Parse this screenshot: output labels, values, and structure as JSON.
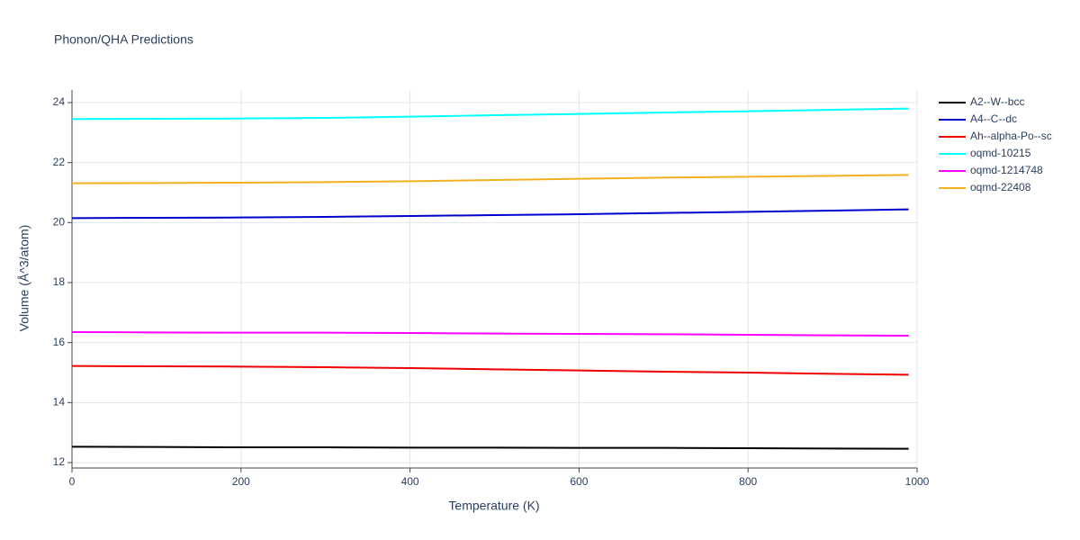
{
  "chart_data": {
    "type": "line",
    "title": "Phonon/QHA Predictions",
    "x_label": "Temperature (K)",
    "y_label": "Volume (Å^3/atom)",
    "x": [
      0,
      100,
      200,
      300,
      400,
      500,
      600,
      700,
      800,
      900,
      990
    ],
    "series": [
      {
        "name": "A2--W--bcc",
        "color": "#000000",
        "values": [
          12.53,
          12.52,
          12.51,
          12.51,
          12.5,
          12.5,
          12.49,
          12.49,
          12.48,
          12.47,
          12.46
        ]
      },
      {
        "name": "A4--C--dc",
        "color": "#0000cd",
        "values": [
          20.15,
          20.16,
          20.17,
          20.19,
          20.22,
          20.25,
          20.28,
          20.32,
          20.36,
          20.4,
          20.44
        ]
      },
      {
        "name": "Ah--alpha-Po--sc",
        "color": "#ee0000",
        "values": [
          15.22,
          15.21,
          15.2,
          15.18,
          15.15,
          15.11,
          15.07,
          15.03,
          15.0,
          14.96,
          14.93
        ]
      },
      {
        "name": "oqmd-10215",
        "color": "#00ffff",
        "values": [
          23.45,
          23.46,
          23.47,
          23.49,
          23.53,
          23.58,
          23.62,
          23.67,
          23.71,
          23.76,
          23.8
        ]
      },
      {
        "name": "oqmd-1214748",
        "color": "#ff00ff",
        "values": [
          16.35,
          16.34,
          16.33,
          16.33,
          16.32,
          16.3,
          16.29,
          16.28,
          16.26,
          16.24,
          16.23
        ]
      },
      {
        "name": "oqmd-22408",
        "color": "#f0b020",
        "values": [
          21.31,
          21.32,
          21.33,
          21.35,
          21.38,
          21.42,
          21.46,
          21.5,
          21.53,
          21.56,
          21.59
        ]
      }
    ],
    "xlim": [
      0,
      1000
    ],
    "xticks": [
      0,
      200,
      400,
      600,
      800,
      1000
    ],
    "ylim": [
      11.82,
      24.42
    ],
    "yticks": [
      12,
      14,
      16,
      18,
      20,
      22,
      24
    ],
    "grid": true,
    "legend": "right"
  }
}
